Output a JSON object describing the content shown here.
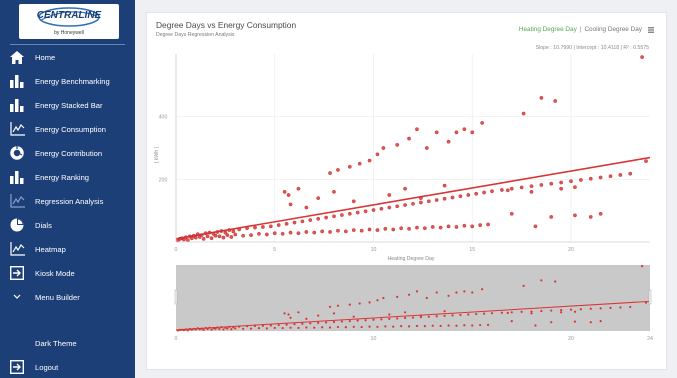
{
  "sidebar": {
    "logo": {
      "brand": "CENTRALINE",
      "tagline": "by Honeywell"
    },
    "items": [
      {
        "label": "Home",
        "icon": "home-icon"
      },
      {
        "label": "Energy Benchmarking",
        "icon": "bar-chart-icon"
      },
      {
        "label": "Energy Stacked Bar",
        "icon": "bar-chart-icon"
      },
      {
        "label": "Energy Consumption",
        "icon": "line-chart-icon"
      },
      {
        "label": "Energy Contribution",
        "icon": "donut-chart-icon"
      },
      {
        "label": "Energy Ranking",
        "icon": "bar-chart-icon"
      },
      {
        "label": "Regression Analysis",
        "icon": "line-chart-icon"
      },
      {
        "label": "Dials",
        "icon": "pie-chart-icon"
      },
      {
        "label": "Heatmap",
        "icon": "line-chart-icon"
      },
      {
        "label": "Kiosk Mode",
        "icon": "enter-arrow-icon"
      },
      {
        "label": "Menu Builder",
        "icon": "chevron-down-icon"
      }
    ],
    "theme_label": "Dark Theme",
    "logout_label": "Logout",
    "logout_icon": "logout-icon",
    "colors": {
      "background": "#1d3f78",
      "text": "#ffffff"
    }
  },
  "card": {
    "title": "Degree Days vs Energy Consumption",
    "subtitle": "Degree Days Regression Analysis",
    "toggle": {
      "heating": "Heating Degree Day",
      "separator": "|",
      "cooling": "Cooling Degree Day",
      "active": "heating"
    },
    "menu_icon": "hamburger-menu-icon",
    "stats": "Slope : 10.7990  |  Intercept : 10.4118  |  R² : 0.5575"
  },
  "colors": {
    "accent_green": "#4fa84f",
    "series": "#d93535",
    "navigator_bg": "#c9c9c9"
  },
  "chart_data": {
    "type": "scatter",
    "title": "Degree Days vs Energy Consumption",
    "xlabel": "Heating Degree Day",
    "ylabel": "( kWh )",
    "xlim": [
      0,
      24
    ],
    "ylim": [
      0,
      600
    ],
    "x_ticks": [
      0,
      5,
      10,
      15,
      20
    ],
    "y_ticks": [
      200,
      400
    ],
    "grid": true,
    "regression": {
      "slope": 10.799,
      "intercept": 10.4118,
      "r2": 0.5575,
      "x_range": [
        0,
        24
      ]
    },
    "navigator": {
      "type": "area-scatter",
      "x_ticks": [
        0,
        10,
        20,
        24
      ],
      "xlim": [
        0,
        24
      ]
    },
    "series_count_note": "",
    "points": [
      [
        0.1,
        5
      ],
      [
        0.2,
        10
      ],
      [
        0.3,
        12
      ],
      [
        0.4,
        8
      ],
      [
        0.5,
        15
      ],
      [
        0.6,
        6
      ],
      [
        0.7,
        18
      ],
      [
        0.8,
        12
      ],
      [
        0.9,
        20
      ],
      [
        1.0,
        14
      ],
      [
        1.1,
        25
      ],
      [
        1.2,
        16
      ],
      [
        1.3,
        22
      ],
      [
        1.4,
        10
      ],
      [
        1.5,
        28
      ],
      [
        1.6,
        18
      ],
      [
        1.7,
        30
      ],
      [
        1.8,
        12
      ],
      [
        1.9,
        26
      ],
      [
        2.0,
        20
      ],
      [
        2.1,
        32
      ],
      [
        2.2,
        18
      ],
      [
        2.3,
        35
      ],
      [
        2.4,
        14
      ],
      [
        2.5,
        30
      ],
      [
        2.6,
        22
      ],
      [
        2.7,
        38
      ],
      [
        2.8,
        16
      ],
      [
        2.9,
        34
      ],
      [
        3.0,
        24
      ],
      [
        3.2,
        40
      ],
      [
        3.4,
        20
      ],
      [
        3.6,
        44
      ],
      [
        3.8,
        22
      ],
      [
        4.0,
        46
      ],
      [
        4.2,
        26
      ],
      [
        4.4,
        48
      ],
      [
        4.6,
        24
      ],
      [
        4.8,
        50
      ],
      [
        5.0,
        28
      ],
      [
        5.2,
        54
      ],
      [
        5.4,
        26
      ],
      [
        5.6,
        58
      ],
      [
        5.8,
        30
      ],
      [
        6.0,
        62
      ],
      [
        6.2,
        28
      ],
      [
        6.4,
        66
      ],
      [
        6.6,
        32
      ],
      [
        6.8,
        70
      ],
      [
        7.0,
        30
      ],
      [
        7.2,
        74
      ],
      [
        7.4,
        34
      ],
      [
        7.6,
        78
      ],
      [
        7.8,
        32
      ],
      [
        8.0,
        82
      ],
      [
        8.2,
        36
      ],
      [
        8.4,
        86
      ],
      [
        8.6,
        34
      ],
      [
        8.8,
        90
      ],
      [
        9.0,
        38
      ],
      [
        9.2,
        94
      ],
      [
        9.4,
        36
      ],
      [
        9.6,
        98
      ],
      [
        9.8,
        40
      ],
      [
        10.0,
        102
      ],
      [
        10.2,
        38
      ],
      [
        10.4,
        106
      ],
      [
        10.6,
        42
      ],
      [
        10.8,
        110
      ],
      [
        11.0,
        40
      ],
      [
        11.2,
        114
      ],
      [
        11.4,
        44
      ],
      [
        11.6,
        118
      ],
      [
        11.8,
        42
      ],
      [
        12.0,
        122
      ],
      [
        12.2,
        46
      ],
      [
        12.4,
        126
      ],
      [
        12.6,
        44
      ],
      [
        12.8,
        130
      ],
      [
        13.0,
        48
      ],
      [
        13.2,
        134
      ],
      [
        13.4,
        46
      ],
      [
        13.6,
        138
      ],
      [
        13.8,
        50
      ],
      [
        14.0,
        142
      ],
      [
        14.2,
        48
      ],
      [
        14.4,
        146
      ],
      [
        14.6,
        52
      ],
      [
        14.8,
        150
      ],
      [
        15.0,
        50
      ],
      [
        15.2,
        154
      ],
      [
        15.4,
        54
      ],
      [
        15.6,
        158
      ],
      [
        15.8,
        56
      ],
      [
        16.0,
        162
      ],
      [
        16.5,
        166
      ],
      [
        17.0,
        170
      ],
      [
        17.5,
        174
      ],
      [
        18.0,
        178
      ],
      [
        18.5,
        182
      ],
      [
        19.0,
        186
      ],
      [
        19.5,
        190
      ],
      [
        20.0,
        194
      ],
      [
        20.5,
        198
      ],
      [
        21.0,
        202
      ],
      [
        21.5,
        206
      ],
      [
        22.0,
        210
      ],
      [
        22.5,
        214
      ],
      [
        23.0,
        218
      ],
      [
        23.8,
        258
      ],
      [
        5.5,
        160
      ],
      [
        5.7,
        150
      ],
      [
        6.2,
        170
      ],
      [
        7.8,
        220
      ],
      [
        8.2,
        230
      ],
      [
        8.8,
        240
      ],
      [
        9.3,
        250
      ],
      [
        9.8,
        260
      ],
      [
        10.2,
        280
      ],
      [
        10.5,
        300
      ],
      [
        11.2,
        310
      ],
      [
        11.8,
        330
      ],
      [
        12.2,
        360
      ],
      [
        12.7,
        300
      ],
      [
        13.2,
        350
      ],
      [
        13.8,
        320
      ],
      [
        14.2,
        350
      ],
      [
        14.6,
        360
      ],
      [
        15.0,
        350
      ],
      [
        15.5,
        380
      ],
      [
        17.6,
        410
      ],
      [
        18.5,
        460
      ],
      [
        19.2,
        450
      ],
      [
        23.6,
        590
      ],
      [
        5.8,
        120
      ],
      [
        6.6,
        110
      ],
      [
        7.2,
        140
      ],
      [
        8.0,
        160
      ],
      [
        9.0,
        130
      ],
      [
        10.8,
        150
      ],
      [
        11.6,
        170
      ],
      [
        12.4,
        140
      ],
      [
        13.6,
        180
      ],
      [
        16.8,
        165
      ],
      [
        18.0,
        160
      ],
      [
        19.5,
        170
      ],
      [
        20.2,
        175
      ],
      [
        17.0,
        90
      ],
      [
        18.2,
        50
      ],
      [
        19.0,
        80
      ],
      [
        20.2,
        85
      ],
      [
        21.0,
        80
      ],
      [
        21.5,
        90
      ]
    ]
  }
}
